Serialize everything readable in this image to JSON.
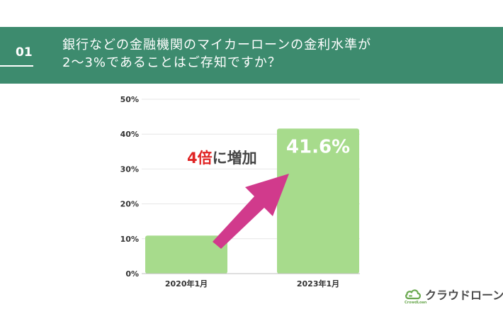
{
  "header": {
    "number": "01",
    "question_line1": "銀行などの金融機関のマイカーローンの金利水準が",
    "question_line2": "2〜3%であることはご存知ですか？"
  },
  "chart_data": {
    "type": "bar",
    "categories": [
      "2020年1月",
      "2023年1月"
    ],
    "values": [
      10.9,
      41.6
    ],
    "yticks": [
      "0%",
      "10%",
      "20%",
      "30%",
      "40%",
      "50%"
    ],
    "ylim": [
      0,
      50
    ],
    "grid": true,
    "data_labels": [
      "",
      "41.6%"
    ],
    "annotation": {
      "highlight": "4倍",
      "rest": "に増加"
    },
    "colors": {
      "bar": "#a7db8c",
      "arrow": "#d13a8c",
      "highlight": "#e02424",
      "annotation": "#444444",
      "grid": "#e6e6e6",
      "axis": "#bfbfbf"
    }
  },
  "logo": {
    "main": "クラウドローン",
    "sub": "CrowdLoan",
    "icon": "cloud-icon",
    "icon_color": "#6aa84f"
  }
}
